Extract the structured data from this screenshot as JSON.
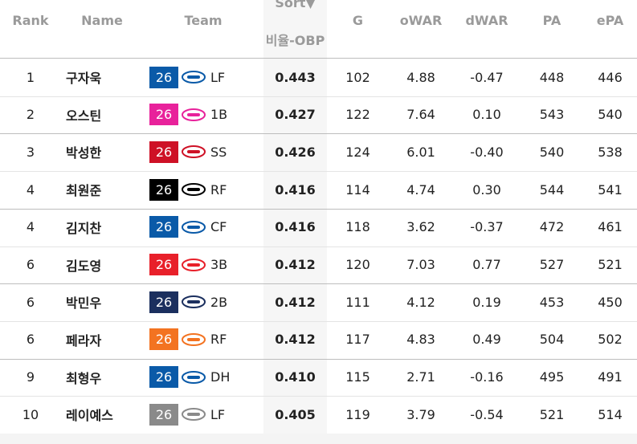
{
  "table": {
    "sort_label": "Sort▼",
    "columns": {
      "rank": "Rank",
      "name": "Name",
      "team": "Team",
      "obp": "비율-OBP",
      "g": "G",
      "owar": "oWAR",
      "dwar": "dWAR",
      "pa": "PA",
      "epa": "ePA"
    },
    "rows": [
      {
        "rank": "1",
        "name": "구자욱",
        "team": {
          "year": "26",
          "color": "#0a5aa8",
          "position": "LF"
        },
        "obp": "0.443",
        "g": "102",
        "owar": "4.88",
        "dwar": "-0.47",
        "pa": "448",
        "epa": "446"
      },
      {
        "rank": "2",
        "name": "오스틴",
        "team": {
          "year": "26",
          "color": "#e8229b",
          "position": "1B"
        },
        "obp": "0.427",
        "g": "122",
        "owar": "7.64",
        "dwar": "0.10",
        "pa": "543",
        "epa": "540"
      },
      {
        "rank": "3",
        "name": "박성한",
        "team": {
          "year": "26",
          "color": "#ce1126",
          "position": "SS"
        },
        "obp": "0.426",
        "g": "124",
        "owar": "6.01",
        "dwar": "-0.40",
        "pa": "540",
        "epa": "538"
      },
      {
        "rank": "4",
        "name": "최원준",
        "team": {
          "year": "26",
          "color": "#000000",
          "position": "RF"
        },
        "obp": "0.416",
        "g": "114",
        "owar": "4.74",
        "dwar": "0.30",
        "pa": "544",
        "epa": "541"
      },
      {
        "rank": "4",
        "name": "김지찬",
        "team": {
          "year": "26",
          "color": "#0a5aa8",
          "position": "CF"
        },
        "obp": "0.416",
        "g": "118",
        "owar": "3.62",
        "dwar": "-0.37",
        "pa": "472",
        "epa": "461"
      },
      {
        "rank": "6",
        "name": "김도영",
        "team": {
          "year": "26",
          "color": "#e8202a",
          "position": "3B"
        },
        "obp": "0.412",
        "g": "120",
        "owar": "7.03",
        "dwar": "0.77",
        "pa": "527",
        "epa": "521"
      },
      {
        "rank": "6",
        "name": "박민우",
        "team": {
          "year": "26",
          "color": "#1b2f5e",
          "position": "2B"
        },
        "obp": "0.412",
        "g": "111",
        "owar": "4.12",
        "dwar": "0.19",
        "pa": "453",
        "epa": "450"
      },
      {
        "rank": "6",
        "name": "페라자",
        "team": {
          "year": "26",
          "color": "#f37321",
          "position": "RF"
        },
        "obp": "0.412",
        "g": "117",
        "owar": "4.83",
        "dwar": "0.49",
        "pa": "504",
        "epa": "502"
      },
      {
        "rank": "9",
        "name": "최형우",
        "team": {
          "year": "26",
          "color": "#0a5aa8",
          "position": "DH"
        },
        "obp": "0.410",
        "g": "115",
        "owar": "2.71",
        "dwar": "-0.16",
        "pa": "495",
        "epa": "491"
      },
      {
        "rank": "10",
        "name": "레이예스",
        "team": {
          "year": "26",
          "color": "#8a8a8a",
          "position": "LF"
        },
        "obp": "0.405",
        "g": "119",
        "owar": "3.79",
        "dwar": "-0.54",
        "pa": "521",
        "epa": "514"
      }
    ]
  }
}
